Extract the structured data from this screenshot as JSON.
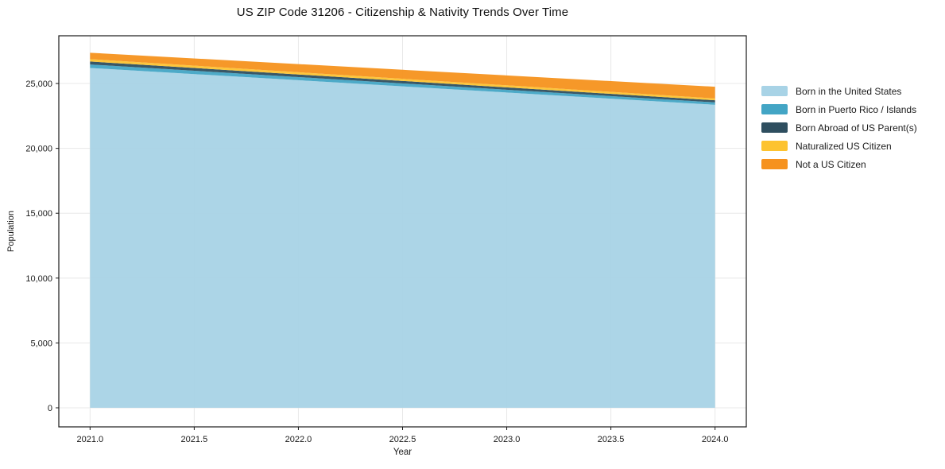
{
  "title": "US ZIP Code 31206 - Citizenship & Nativity Trends Over Time",
  "chart_data": {
    "type": "area",
    "stacked": true,
    "title": "US ZIP Code 31206 - Citizenship & Nativity Trends Over Time",
    "xlabel": "Year",
    "ylabel": "Population",
    "x": [
      2021,
      2024
    ],
    "series": [
      {
        "name": "Born in the United States",
        "color": "#a8d3e6",
        "values": [
          26200,
          23360
        ]
      },
      {
        "name": "Born in Puerto Rico / Islands",
        "color": "#43a5c5",
        "values": [
          270,
          185
        ]
      },
      {
        "name": "Born Abroad of US Parent(s)",
        "color": "#2e4e5f",
        "values": [
          225,
          160
        ]
      },
      {
        "name": "Naturalized US Citizen",
        "color": "#fdc330",
        "values": [
          185,
          145
        ]
      },
      {
        "name": "Not a US Citizen",
        "color": "#f6921e",
        "values": [
          490,
          900
        ]
      }
    ],
    "totals": {
      "2021": 27370,
      "2024": 24750
    },
    "xticks": [
      2021.0,
      2021.5,
      2022.0,
      2022.5,
      2023.0,
      2023.5,
      2024.0
    ],
    "xtick_labels": [
      "2021.0",
      "2021.5",
      "2022.0",
      "2022.5",
      "2023.0",
      "2023.5",
      "2024.0"
    ],
    "yticks": [
      0,
      5000,
      10000,
      15000,
      20000,
      25000
    ],
    "ytick_labels": [
      "0",
      "5,000",
      "10,000",
      "15,000",
      "20,000",
      "25,000"
    ],
    "xlim": [
      2020.85,
      2024.15
    ],
    "ylim": [
      -1470,
      28680
    ],
    "grid": true,
    "grid_color": "#e8e8e8",
    "spine_color": "#1a1a1a",
    "legend_position": "right"
  }
}
